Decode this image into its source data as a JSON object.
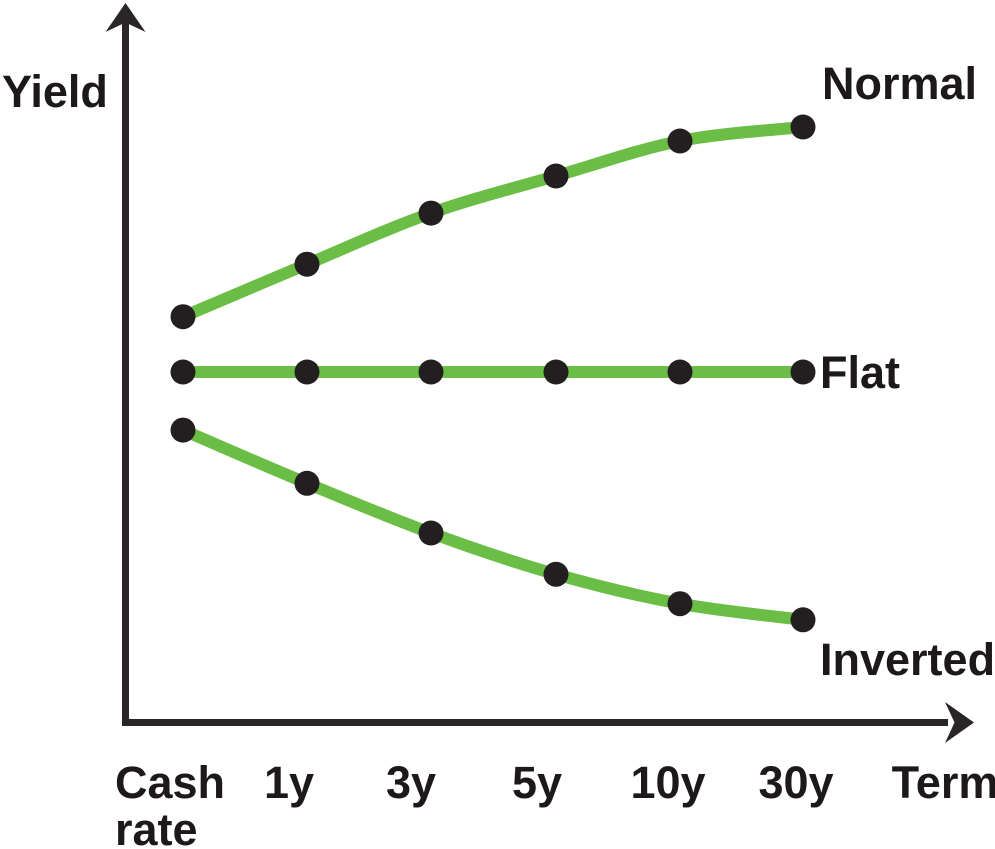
{
  "chart_data": {
    "type": "line",
    "title": "",
    "xlabel": "Term",
    "ylabel": "Yield",
    "categories": [
      "Cash rate",
      "1y",
      "3y",
      "5y",
      "10y",
      "30y"
    ],
    "series": [
      {
        "name": "Normal",
        "values": [
          5.79,
          6.54,
          7.27,
          7.8,
          8.3,
          8.5
        ]
      },
      {
        "name": "Flat",
        "values": [
          5.0,
          5.0,
          5.0,
          5.0,
          5.0,
          5.0
        ]
      },
      {
        "name": "Inverted",
        "values": [
          4.17,
          3.41,
          2.7,
          2.11,
          1.69,
          1.46
        ]
      }
    ],
    "axis_numeric_scale_shown": false,
    "grid": false,
    "legend_position": "inline labels at right end of each curve",
    "line_color": "#6abd45",
    "marker_color": "#231f20",
    "axis_color": "#2a2627",
    "text_color": "#1d191a",
    "background": "#ffffff"
  }
}
